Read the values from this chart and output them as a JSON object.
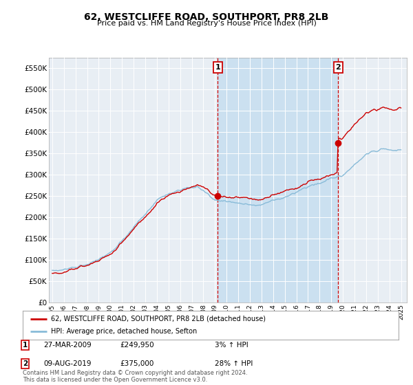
{
  "title": "62, WESTCLIFFE ROAD, SOUTHPORT, PR8 2LB",
  "subtitle": "Price paid vs. HM Land Registry's House Price Index (HPI)",
  "ylim": [
    0,
    575000
  ],
  "yticks": [
    0,
    50000,
    100000,
    150000,
    200000,
    250000,
    300000,
    350000,
    400000,
    450000,
    500000,
    550000
  ],
  "ytick_labels": [
    "£0",
    "£50K",
    "£100K",
    "£150K",
    "£200K",
    "£250K",
    "£300K",
    "£350K",
    "£400K",
    "£450K",
    "£500K",
    "£550K"
  ],
  "background_color": "#ffffff",
  "plot_bg_color": "#dce8f5",
  "plot_bg_left_color": "#e8eef4",
  "grid_color": "#ffffff",
  "sale1_date": 2009.23,
  "sale1_price": 249950,
  "sale2_date": 2019.6,
  "sale2_price": 375000,
  "red_line_color": "#cc0000",
  "blue_line_color": "#88bbd8",
  "dashed_line_color": "#cc0000",
  "shade_color": "#c8dff0",
  "legend_label_red": "62, WESTCLIFFE ROAD, SOUTHPORT, PR8 2LB (detached house)",
  "legend_label_blue": "HPI: Average price, detached house, Sefton",
  "footer_text": "Contains HM Land Registry data © Crown copyright and database right 2024.\nThis data is licensed under the Open Government Licence v3.0.",
  "annotation1_date_str": "27-MAR-2009",
  "annotation1_price_str": "£249,950",
  "annotation1_hpi_str": "3% ↑ HPI",
  "annotation2_date_str": "09-AUG-2019",
  "annotation2_price_str": "£375,000",
  "annotation2_hpi_str": "28% ↑ HPI"
}
